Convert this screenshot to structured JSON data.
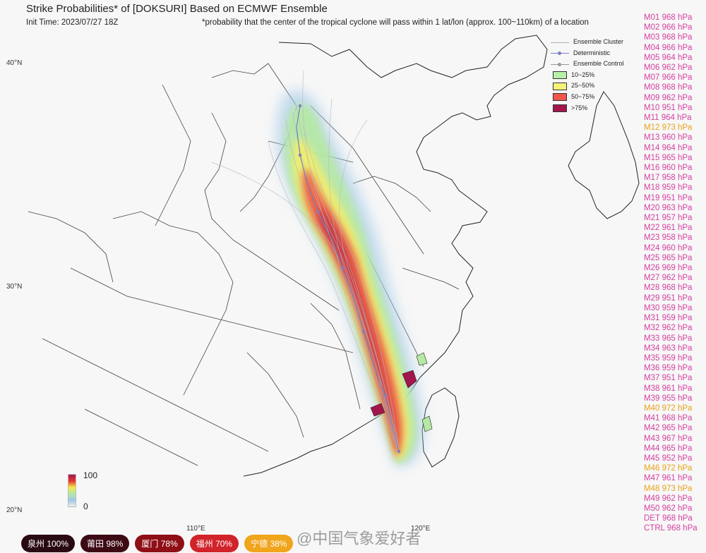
{
  "header": {
    "title": "Strike Probabilities* of [DOKSURI] Based on ECMWF Ensemble",
    "init_time": "Init Time: 2023/07/27 18Z",
    "footnote": "*probability that the center of the tropical cyclone will pass within 1 lat/lon (approx. 100~110km) of a location"
  },
  "axes": {
    "lat_labels": [
      "40°N",
      "30°N",
      "20°N"
    ],
    "lon_labels": [
      "110°E",
      "120°E"
    ]
  },
  "legend": {
    "items": [
      {
        "label": "Ensemble Cluster",
        "kind": "line",
        "color": "#b0b0b0"
      },
      {
        "label": "Deterministic",
        "kind": "marker-line",
        "color": "#7b7fc2"
      },
      {
        "label": "Ensemble Control",
        "kind": "marker-line",
        "color": "#999999"
      },
      {
        "label": "10~25%",
        "kind": "box",
        "color": "#b9f0a8"
      },
      {
        "label": "25~50%",
        "kind": "box",
        "color": "#f5f27a"
      },
      {
        "label": "50~75%",
        "kind": "box",
        "color": "#f2574b"
      },
      {
        "label": ">75%",
        "kind": "box",
        "color": "#a3154c"
      }
    ]
  },
  "colorbar": {
    "max_label": "100",
    "min_label": "0"
  },
  "members": [
    {
      "label": "M01 968 hPa",
      "color": "#d63fa0"
    },
    {
      "label": "M02 966 hPa",
      "color": "#d63fa0"
    },
    {
      "label": "M03 968 hPa",
      "color": "#d63fa0"
    },
    {
      "label": "M04 966 hPa",
      "color": "#d63fa0"
    },
    {
      "label": "M05 964 hPa",
      "color": "#d63fa0"
    },
    {
      "label": "M06 962 hPa",
      "color": "#d63fa0"
    },
    {
      "label": "M07 966 hPa",
      "color": "#d63fa0"
    },
    {
      "label": "M08 968 hPa",
      "color": "#d63fa0"
    },
    {
      "label": "M09 962 hPa",
      "color": "#d63fa0"
    },
    {
      "label": "M10 951 hPa",
      "color": "#d63fa0"
    },
    {
      "label": "M11 964 hPa",
      "color": "#d63fa0"
    },
    {
      "label": "M12 973 hPa",
      "color": "#e8a21a"
    },
    {
      "label": "M13 960 hPa",
      "color": "#d63fa0"
    },
    {
      "label": "M14 964 hPa",
      "color": "#d63fa0"
    },
    {
      "label": "M15 965 hPa",
      "color": "#d63fa0"
    },
    {
      "label": "M16 960 hPa",
      "color": "#d63fa0"
    },
    {
      "label": "M17 958 hPa",
      "color": "#d63fa0"
    },
    {
      "label": "M18 959 hPa",
      "color": "#d63fa0"
    },
    {
      "label": "M19 951 hPa",
      "color": "#d63fa0"
    },
    {
      "label": "M20 963 hPa",
      "color": "#d63fa0"
    },
    {
      "label": "M21 957 hPa",
      "color": "#d63fa0"
    },
    {
      "label": "M22 961 hPa",
      "color": "#d63fa0"
    },
    {
      "label": "M23 958 hPa",
      "color": "#d63fa0"
    },
    {
      "label": "M24 960 hPa",
      "color": "#d63fa0"
    },
    {
      "label": "M25 965 hPa",
      "color": "#d63fa0"
    },
    {
      "label": "M26 969 hPa",
      "color": "#d63fa0"
    },
    {
      "label": "M27 962 hPa",
      "color": "#d63fa0"
    },
    {
      "label": "M28 968 hPa",
      "color": "#d63fa0"
    },
    {
      "label": "M29 951 hPa",
      "color": "#d63fa0"
    },
    {
      "label": "M30 959 hPa",
      "color": "#d63fa0"
    },
    {
      "label": "M31 959 hPa",
      "color": "#d63fa0"
    },
    {
      "label": "M32 962 hPa",
      "color": "#d63fa0"
    },
    {
      "label": "M33 965 hPa",
      "color": "#d63fa0"
    },
    {
      "label": "M34 963 hPa",
      "color": "#d63fa0"
    },
    {
      "label": "M35 959 hPa",
      "color": "#d63fa0"
    },
    {
      "label": "M36 959 hPa",
      "color": "#d63fa0"
    },
    {
      "label": "M37 951 hPa",
      "color": "#d63fa0"
    },
    {
      "label": "M38 961 hPa",
      "color": "#d63fa0"
    },
    {
      "label": "M39 955 hPa",
      "color": "#d63fa0"
    },
    {
      "label": "M40 972 hPa",
      "color": "#e8a21a"
    },
    {
      "label": "M41 968 hPa",
      "color": "#d63fa0"
    },
    {
      "label": "M42 965 hPa",
      "color": "#d63fa0"
    },
    {
      "label": "M43 967 hPa",
      "color": "#d63fa0"
    },
    {
      "label": "M44 965 hPa",
      "color": "#d63fa0"
    },
    {
      "label": "M45 952 hPa",
      "color": "#d63fa0"
    },
    {
      "label": "M46 972 hPa",
      "color": "#e8a21a"
    },
    {
      "label": "M47 961 hPa",
      "color": "#d63fa0"
    },
    {
      "label": "M48 973 hPa",
      "color": "#e8a21a"
    },
    {
      "label": "M49 962 hPa",
      "color": "#d63fa0"
    },
    {
      "label": "M50 962 hPa",
      "color": "#d63fa0"
    },
    {
      "label": "DET 968 hPa",
      "color": "#d63fa0"
    },
    {
      "label": "CTRL 968 hPa",
      "color": "#d63fa0"
    }
  ],
  "cities": [
    {
      "name": "泉州 100%",
      "color": "#2a0a12"
    },
    {
      "name": "莆田 98%",
      "color": "#3d0a14"
    },
    {
      "name": "厦门 78%",
      "color": "#8f0f16"
    },
    {
      "name": "福州 70%",
      "color": "#d1232a"
    },
    {
      "name": "宁德 38%",
      "color": "#f0a51c"
    }
  ],
  "watermark": "@中国气象爱好者"
}
